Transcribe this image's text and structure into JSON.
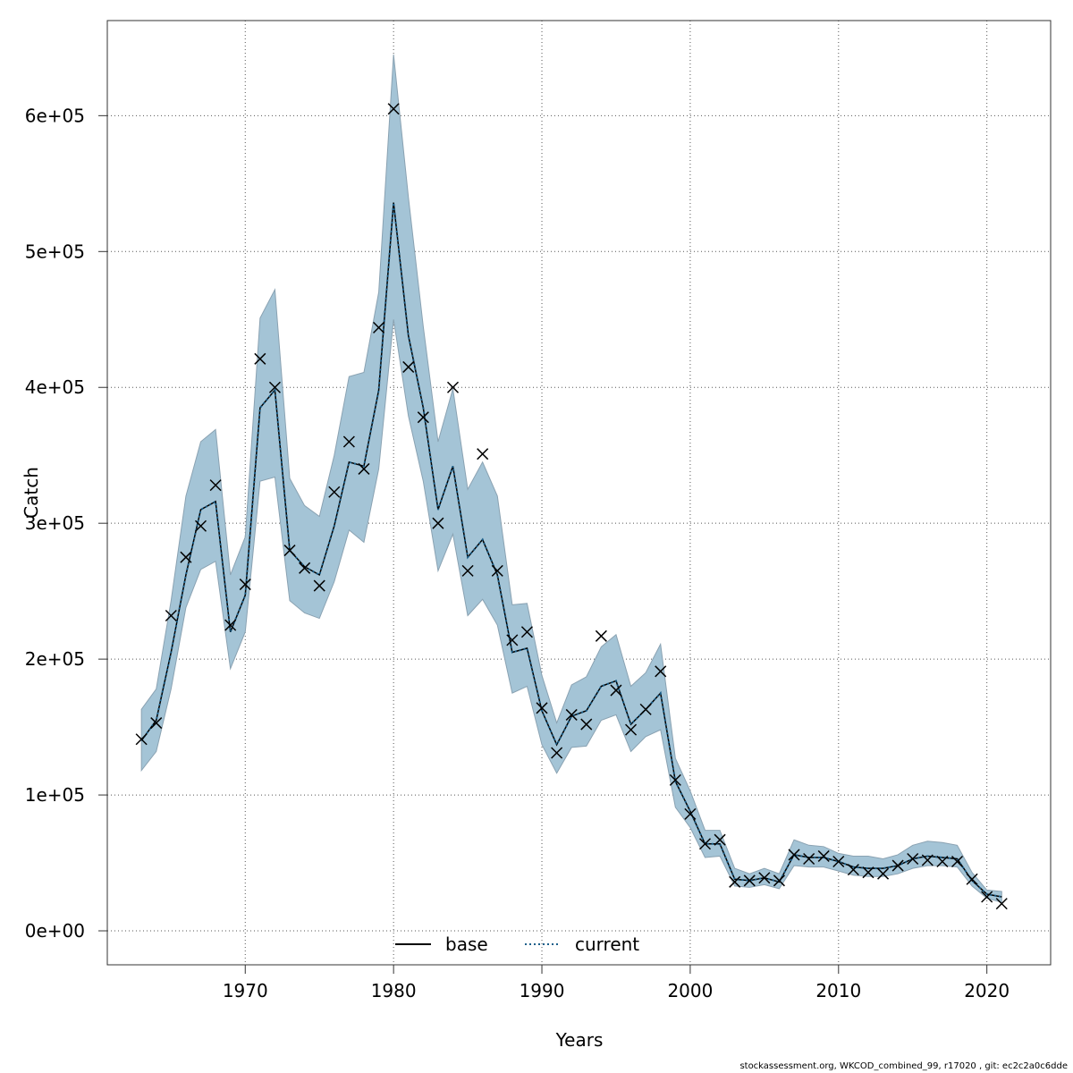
{
  "chart_data": {
    "type": "line",
    "xlabel": "Years",
    "ylabel": "Catch",
    "xlim": [
      1960.7,
      2024.3
    ],
    "ylim": [
      -25000,
      670000
    ],
    "x_ticks": [
      1970,
      1980,
      1990,
      2000,
      2010,
      2020
    ],
    "x_tick_labels": [
      "1970",
      "1980",
      "1990",
      "2000",
      "2010",
      "2020"
    ],
    "y_ticks": [
      0,
      100000,
      200000,
      300000,
      400000,
      500000,
      600000
    ],
    "y_tick_labels": [
      "0e+00",
      "1e+05",
      "2e+05",
      "3e+05",
      "4e+05",
      "5e+05",
      "6e+05"
    ],
    "grid": true,
    "legend_position": "bottom-center",
    "colors": {
      "band_fill": "#a4c4d6",
      "band_edge": "#8aa2b2",
      "base_line": "#000000",
      "current_line": "#1a5f8a",
      "observed_marker": "#000000",
      "grid": "#555555"
    },
    "legend": [
      {
        "label": "base",
        "style": "solid",
        "color": "#000000"
      },
      {
        "label": "current",
        "style": "dotted",
        "color": "#1a5f8a"
      }
    ],
    "years": [
      1963,
      1964,
      1965,
      1966,
      1967,
      1968,
      1969,
      1970,
      1971,
      1972,
      1973,
      1974,
      1975,
      1976,
      1977,
      1978,
      1979,
      1980,
      1981,
      1982,
      1983,
      1984,
      1985,
      1986,
      1987,
      1988,
      1989,
      1990,
      1991,
      1992,
      1993,
      1994,
      1995,
      1996,
      1997,
      1998,
      1999,
      2000,
      2001,
      2002,
      2003,
      2004,
      2005,
      2006,
      2007,
      2008,
      2009,
      2010,
      2011,
      2012,
      2013,
      2014,
      2015,
      2016,
      2017,
      2018,
      2019,
      2020,
      2021
    ],
    "series": [
      {
        "name": "base",
        "values": [
          140000,
          155000,
          205000,
          262000,
          310000,
          316000,
          220000,
          247000,
          385000,
          398000,
          280000,
          268000,
          262000,
          298000,
          345000,
          342000,
          398000,
          536000,
          438000,
          385000,
          310000,
          342000,
          275000,
          288000,
          262000,
          205000,
          208000,
          162000,
          137000,
          158000,
          162000,
          180000,
          184000,
          152000,
          163000,
          175000,
          110000,
          88000,
          64000,
          64000,
          38000,
          37000,
          39000,
          36000,
          56000,
          54000,
          54000,
          51000,
          47000,
          46000,
          46000,
          48000,
          53000,
          55000,
          54000,
          53000,
          37000,
          27000,
          25000
        ]
      },
      {
        "name": "current",
        "values": [
          140000,
          155000,
          205000,
          262000,
          310000,
          316000,
          220000,
          247000,
          385000,
          398000,
          280000,
          268000,
          262000,
          298000,
          345000,
          342000,
          398000,
          536000,
          438000,
          385000,
          310000,
          342000,
          275000,
          288000,
          262000,
          205000,
          208000,
          162000,
          137000,
          158000,
          162000,
          180000,
          184000,
          152000,
          163000,
          175000,
          110000,
          88000,
          64000,
          64000,
          38000,
          37000,
          39000,
          36000,
          56000,
          54000,
          54000,
          51000,
          47000,
          46000,
          46000,
          48000,
          53000,
          55000,
          54000,
          53000,
          37000,
          27000,
          25000
        ]
      }
    ],
    "band_upper": [
      163000,
      178000,
      243000,
      320000,
      360000,
      369000,
      262000,
      290000,
      451000,
      472000,
      333000,
      313000,
      305000,
      350000,
      408000,
      411000,
      470000,
      645000,
      540000,
      445000,
      360000,
      399000,
      325000,
      345000,
      320000,
      240000,
      241000,
      188000,
      153000,
      181000,
      187000,
      209000,
      218000,
      180000,
      190000,
      211000,
      127000,
      103000,
      74000,
      74000,
      46000,
      42000,
      46000,
      42000,
      67000,
      63000,
      62000,
      57000,
      55000,
      55000,
      53000,
      56000,
      63000,
      66000,
      65000,
      63000,
      43000,
      30000,
      29000
    ],
    "band_lower": [
      118000,
      132000,
      178000,
      238000,
      266000,
      272000,
      193000,
      220000,
      331000,
      334000,
      243000,
      234000,
      230000,
      257000,
      295000,
      286000,
      340000,
      450000,
      379000,
      331000,
      265000,
      292000,
      232000,
      244000,
      225000,
      175000,
      180000,
      137000,
      116000,
      135000,
      136000,
      155000,
      159000,
      132000,
      143000,
      148000,
      91000,
      76000,
      54000,
      55000,
      33000,
      32000,
      34000,
      31000,
      48000,
      47000,
      47000,
      44000,
      41000,
      40000,
      40000,
      42000,
      46000,
      48000,
      48000,
      47000,
      33000,
      24000,
      21000
    ],
    "observed": [
      141000,
      153000,
      232000,
      275000,
      298000,
      328000,
      225000,
      255000,
      421000,
      400000,
      280000,
      267000,
      254000,
      323000,
      360000,
      340000,
      444000,
      605000,
      415000,
      378000,
      300000,
      400000,
      265000,
      351000,
      265000,
      214000,
      220000,
      164000,
      131000,
      159000,
      152000,
      217000,
      177000,
      148000,
      163000,
      191000,
      111000,
      86000,
      64000,
      67000,
      36000,
      37000,
      39000,
      37000,
      56000,
      53000,
      55000,
      51000,
      45000,
      43000,
      42000,
      48000,
      53000,
      52000,
      51000,
      51000,
      38000,
      25000,
      20000
    ]
  },
  "footer": {
    "credit": "stockassessment.org, WKCOD_combined_99, r17020 , git: ec2c2a0c6dde"
  }
}
